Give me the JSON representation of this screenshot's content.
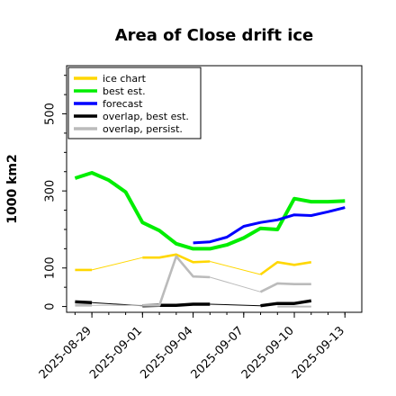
{
  "chart_data": {
    "type": "line",
    "title": "Area of Close drift ice",
    "xlabel": "",
    "ylabel": "1000 km2",
    "ylim": [
      -15,
      625
    ],
    "y_ticks": [
      0,
      100,
      300,
      500
    ],
    "x_ticks": [
      "2025-08-29",
      "2025-09-01",
      "2025-09-04",
      "2025-09-07",
      "2025-09-10",
      "2025-09-13"
    ],
    "highlight_tick": "2025-09-04",
    "highlight_color": "#228b22",
    "legend_position": "upper left",
    "series": [
      {
        "name": "ice chart",
        "color": "#ffd700",
        "segments": [
          {
            "x": [
              "2025-08-28",
              "2025-08-29"
            ],
            "y": [
              95,
              95
            ],
            "width": 2.6
          },
          {
            "x": [
              "2025-08-29",
              "2025-09-01"
            ],
            "y": [
              95,
              127
            ],
            "width": 1
          },
          {
            "x": [
              "2025-09-01",
              "2025-09-02",
              "2025-09-03",
              "2025-09-04",
              "2025-09-05"
            ],
            "y": [
              127,
              127,
              135,
              115,
              117
            ],
            "width": 2.6
          },
          {
            "x": [
              "2025-09-05",
              "2025-09-08"
            ],
            "y": [
              117,
              83
            ],
            "width": 1
          },
          {
            "x": [
              "2025-09-08",
              "2025-09-09",
              "2025-09-10",
              "2025-09-11"
            ],
            "y": [
              83,
              115,
              108,
              115
            ],
            "width": 2.6
          }
        ]
      },
      {
        "name": "best est.",
        "color": "#00ee00",
        "segments": [
          {
            "x": [
              "2025-08-28",
              "2025-08-29",
              "2025-08-30",
              "2025-08-31",
              "2025-09-01",
              "2025-09-02",
              "2025-09-03",
              "2025-09-04",
              "2025-09-05",
              "2025-09-06",
              "2025-09-07",
              "2025-09-08",
              "2025-09-09",
              "2025-09-10",
              "2025-09-11",
              "2025-09-12",
              "2025-09-13"
            ],
            "y": [
              333,
              347,
              328,
              297,
              218,
              197,
              163,
              150,
              150,
              160,
              178,
              203,
              200,
              280,
              272,
              272,
              274
            ],
            "width": 4
          }
        ]
      },
      {
        "name": "forecast",
        "color": "#0000ff",
        "segments": [
          {
            "x": [
              "2025-09-04",
              "2025-09-05",
              "2025-09-06",
              "2025-09-07",
              "2025-09-08",
              "2025-09-09",
              "2025-09-10",
              "2025-09-11",
              "2025-09-12",
              "2025-09-13"
            ],
            "y": [
              165,
              168,
              180,
              208,
              218,
              225,
              238,
              236,
              246,
              257
            ],
            "width": 3
          }
        ]
      },
      {
        "name": "overlap, best est.",
        "color": "#000000",
        "segments": [
          {
            "x": [
              "2025-08-28",
              "2025-08-29"
            ],
            "y": [
              12,
              10
            ],
            "width": 3.5
          },
          {
            "x": [
              "2025-08-29",
              "2025-09-01"
            ],
            "y": [
              10,
              2
            ],
            "width": 1
          },
          {
            "x": [
              "2025-09-01",
              "2025-09-02",
              "2025-09-03",
              "2025-09-04",
              "2025-09-05"
            ],
            "y": [
              2,
              3,
              3,
              6,
              6
            ],
            "width": 3.5
          },
          {
            "x": [
              "2025-09-05",
              "2025-09-08"
            ],
            "y": [
              6,
              2
            ],
            "width": 1
          },
          {
            "x": [
              "2025-09-08",
              "2025-09-09",
              "2025-09-10",
              "2025-09-11"
            ],
            "y": [
              2,
              8,
              8,
              15
            ],
            "width": 3.5
          }
        ]
      },
      {
        "name": "overlap, persist.",
        "color": "#bbbbbb",
        "segments": [
          {
            "x": [
              "2025-08-28",
              "2025-08-29"
            ],
            "y": [
              3,
              3
            ],
            "width": 2.6
          },
          {
            "x": [
              "2025-08-29",
              "2025-09-01"
            ],
            "y": [
              3,
              3
            ],
            "width": 1
          },
          {
            "x": [
              "2025-09-01",
              "2025-09-02",
              "2025-09-03",
              "2025-09-04",
              "2025-09-05"
            ],
            "y": [
              3,
              3,
              130,
              78,
              76
            ],
            "width": 2.6
          },
          {
            "x": [
              "2025-09-05",
              "2025-09-08"
            ],
            "y": [
              76,
              38
            ],
            "width": 1
          },
          {
            "x": [
              "2025-09-08",
              "2025-09-09",
              "2025-09-10",
              "2025-09-11"
            ],
            "y": [
              38,
              60,
              58,
              58
            ],
            "width": 2.6
          },
          {
            "x": [
              "2025-09-09",
              "2025-09-11"
            ],
            "y": [
              0,
              0
            ],
            "width": 2
          }
        ]
      }
    ]
  }
}
